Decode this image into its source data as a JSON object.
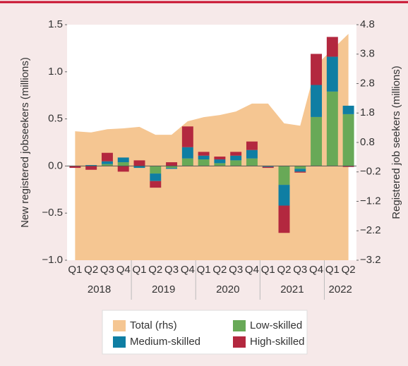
{
  "chart_data": {
    "type": "bar",
    "categories": [
      "Q1",
      "Q2",
      "Q3",
      "Q4",
      "Q1",
      "Q2",
      "Q3",
      "Q4",
      "Q1",
      "Q2",
      "Q3",
      "Q4",
      "Q1",
      "Q2",
      "Q3",
      "Q4",
      "Q1",
      "Q2"
    ],
    "years": [
      "2018",
      "2019",
      "2020",
      "2021",
      "2022"
    ],
    "ylabel": "New registered jobseekers (millions)",
    "y2label": "Registered job seekers (millions)",
    "ylim": [
      -1.0,
      1.5
    ],
    "yticks": [
      {
        "value": 1.5,
        "label": "1.5"
      },
      {
        "value": 1.0,
        "label": "1.0"
      },
      {
        "value": 0.5,
        "label": "0.5"
      },
      {
        "value": 0.0,
        "label": "0.0"
      },
      {
        "value": -0.5,
        "label": "−0.5"
      },
      {
        "value": -1.0,
        "label": "−1.0"
      }
    ],
    "y2lim": [
      -3.2,
      4.8
    ],
    "y2ticks": [
      {
        "value": 4.8,
        "label": "4.8"
      },
      {
        "value": 3.8,
        "label": "3.8"
      },
      {
        "value": 2.8,
        "label": "2.8"
      },
      {
        "value": 1.8,
        "label": "1.8"
      },
      {
        "value": 0.8,
        "label": "0.8"
      },
      {
        "value": -0.2,
        "label": "−0.2"
      },
      {
        "value": -1.2,
        "label": "−1.2"
      },
      {
        "value": -2.2,
        "label": "−2.2"
      },
      {
        "value": -3.2,
        "label": "−3.2"
      }
    ],
    "series": [
      {
        "name": "Total (rhs)",
        "type": "area",
        "axis": "y2",
        "color": "#f5c692",
        "values": [
          1.18,
          1.14,
          1.25,
          1.28,
          1.33,
          1.06,
          1.06,
          1.52,
          1.66,
          1.73,
          1.85,
          2.12,
          2.12,
          1.45,
          1.37,
          3.43,
          3.96,
          4.49
        ]
      },
      {
        "name": "Low-skilled",
        "type": "bar",
        "color": "#68a957",
        "values": [
          0,
          0,
          0.02,
          0.04,
          0,
          -0.08,
          -0.02,
          0.08,
          0.07,
          0.03,
          0.06,
          0.08,
          0,
          -0.2,
          -0.03,
          0.52,
          0.79,
          0.55
        ]
      },
      {
        "name": "Medium-skilled",
        "type": "bar",
        "color": "#0f7ea3",
        "values": [
          0,
          0.01,
          0.03,
          0.05,
          -0.02,
          -0.08,
          -0.01,
          0.12,
          0.04,
          0.04,
          0.05,
          0.09,
          -0.01,
          -0.22,
          -0.03,
          0.34,
          0.37,
          0.09
        ]
      },
      {
        "name": "High-skilled",
        "type": "bar",
        "color": "#b3283f",
        "values": [
          -0.02,
          -0.04,
          0.09,
          -0.06,
          0.06,
          -0.07,
          0.04,
          0.22,
          0.04,
          0.03,
          0.04,
          0.09,
          -0.01,
          -0.29,
          -0.01,
          0.33,
          0.21,
          -0.01
        ]
      }
    ]
  }
}
